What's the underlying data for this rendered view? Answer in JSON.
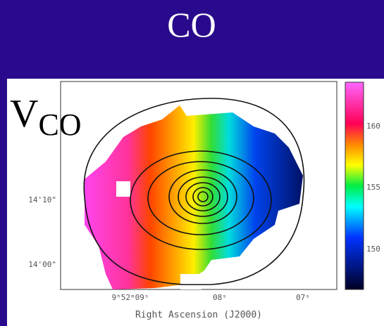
{
  "slide": {
    "title": "CO",
    "label": {
      "main": "V",
      "subscript": "CO"
    },
    "figure": {
      "dec_labels": [
        "14'10\"",
        "14'00\""
      ],
      "ra_labels": [
        "9ʰ52ᵐ09ˢ",
        "08ˢ",
        "07ˢ"
      ],
      "x_axis_title": "Right Ascension (J2000)",
      "colorbar_labels": [
        "160",
        "155",
        "150"
      ]
    }
  }
}
